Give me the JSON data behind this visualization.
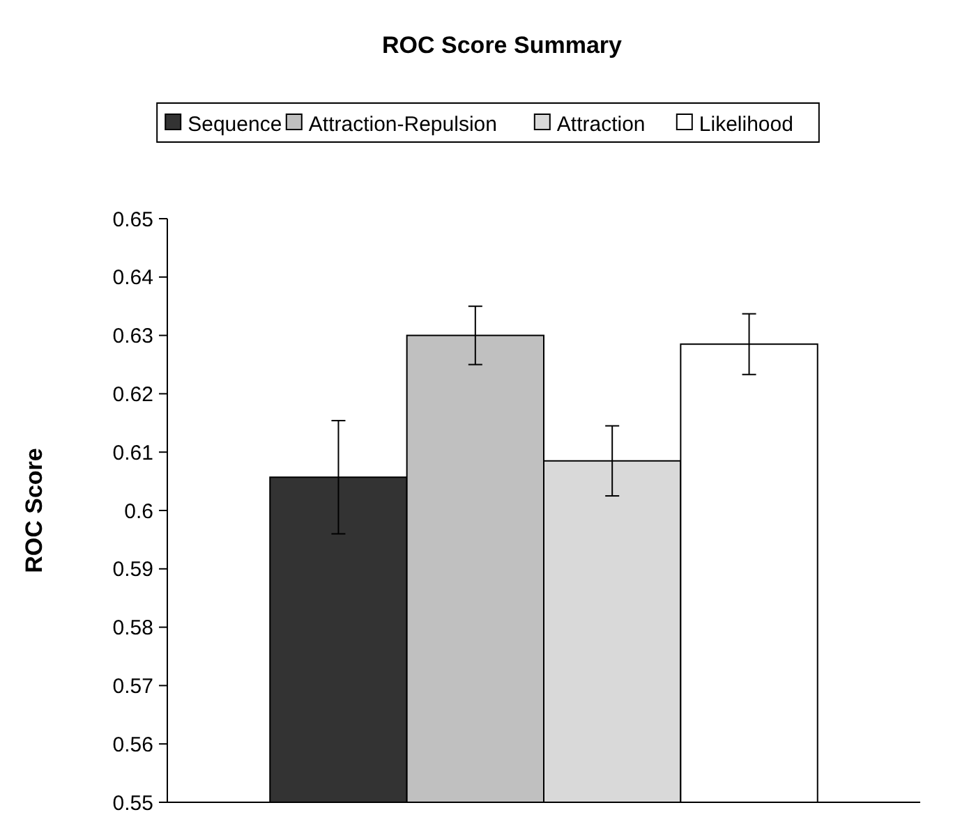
{
  "chart_data": {
    "type": "bar",
    "title": "ROC Score Summary",
    "ylabel": "ROC Score",
    "categories": [
      null
    ],
    "series": [
      {
        "name": "Sequence",
        "color": "#333333",
        "values": [
          0.6057
        ],
        "errors": [
          0.0097
        ]
      },
      {
        "name": "Attraction-Repulsion",
        "color": "#c0c0c0",
        "values": [
          0.63
        ],
        "errors": [
          0.005
        ]
      },
      {
        "name": "Attraction",
        "color": "#d9d9d9",
        "values": [
          0.6085
        ],
        "errors": [
          0.006
        ]
      },
      {
        "name": "Likelihood",
        "color": "#ffffff",
        "values": [
          0.6285
        ],
        "errors": [
          0.0052
        ]
      }
    ],
    "ylim": [
      0.55,
      0.65
    ],
    "yticks": [
      0.55,
      0.56,
      0.57,
      0.58,
      0.59,
      {
        "value": 0.6,
        "label": "0.6"
      },
      0.61,
      0.62,
      0.63,
      0.64,
      0.65
    ],
    "tick_labels": "y",
    "grid": false,
    "legend": "top"
  }
}
